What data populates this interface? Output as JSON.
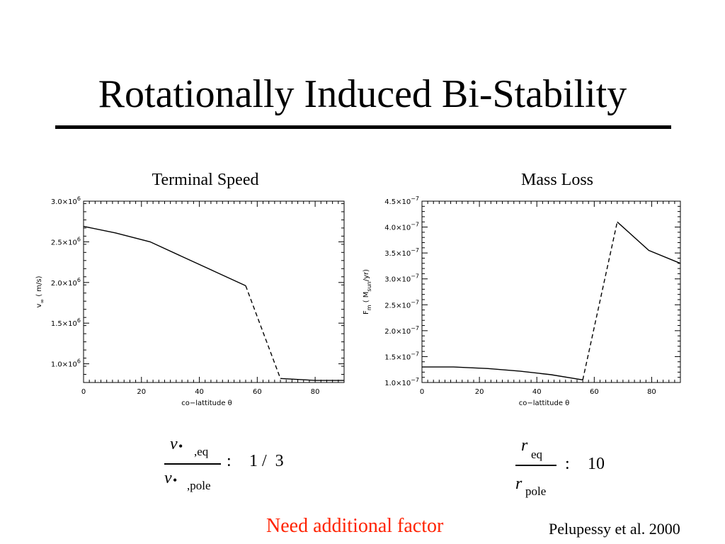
{
  "slide": {
    "title": "Rotationally Induced Bi-Stability",
    "note": "Need additional factor",
    "note_color": "#ff2200",
    "citation": "Pelupessy et al. 2000"
  },
  "chart_data": [
    {
      "type": "line",
      "title": "Terminal Speed",
      "xlabel": "co−lattitude  θ",
      "ylabel_main": "v",
      "ylabel_sub": "∞",
      "ylabel_units": "( m/s)",
      "xlim": [
        0,
        90
      ],
      "ylim": [
        770000,
        3000000
      ],
      "x_ticks": [
        0,
        20,
        40,
        60,
        80
      ],
      "x_tick_labels": [
        "0",
        "20",
        "40",
        "60",
        "80"
      ],
      "y_ticks": [
        {
          "value": 1000000,
          "mant": "1.0×10",
          "exp": "6"
        },
        {
          "value": 1500000,
          "mant": "1.5×10",
          "exp": "6"
        },
        {
          "value": 2000000,
          "mant": "2.0×10",
          "exp": "6"
        },
        {
          "value": 2500000,
          "mant": "2.5×10",
          "exp": "6"
        },
        {
          "value": 3000000,
          "mant": "3.0×10",
          "exp": "6"
        }
      ],
      "grid": false,
      "series": [
        {
          "style": "solid",
          "x": [
            0,
            11,
            23,
            34,
            45,
            56
          ],
          "y": [
            2690000,
            2610000,
            2500000,
            2320000,
            2140000,
            1960000
          ]
        },
        {
          "style": "dashed",
          "x": [
            56,
            68
          ],
          "y": [
            1960000,
            820000
          ]
        },
        {
          "style": "solid",
          "x": [
            68,
            80,
            90
          ],
          "y": [
            820000,
            795000,
            795000
          ]
        }
      ]
    },
    {
      "type": "line",
      "title": "Mass Loss",
      "xlabel": "co−lattitude  θ",
      "ylabel_main": "F",
      "ylabel_sub": "m",
      "ylabel_units_pre": "( M",
      "ylabel_units_sub": "sun",
      "ylabel_units_post": "/yr)",
      "xlim": [
        0,
        90
      ],
      "ylim": [
        1e-07,
        4.5e-07
      ],
      "x_ticks": [
        0,
        20,
        40,
        60,
        80
      ],
      "x_tick_labels": [
        "0",
        "20",
        "40",
        "60",
        "80"
      ],
      "y_ticks": [
        {
          "value": 1e-07,
          "mant": "1.0×10",
          "exp": "−7"
        },
        {
          "value": 1.5e-07,
          "mant": "1.5×10",
          "exp": "−7"
        },
        {
          "value": 2e-07,
          "mant": "2.0×10",
          "exp": "−7"
        },
        {
          "value": 2.5e-07,
          "mant": "2.5×10",
          "exp": "−7"
        },
        {
          "value": 3e-07,
          "mant": "3.0×10",
          "exp": "−7"
        },
        {
          "value": 3.5e-07,
          "mant": "3.5×10",
          "exp": "−7"
        },
        {
          "value": 4e-07,
          "mant": "4.0×10",
          "exp": "−7"
        },
        {
          "value": 4.5e-07,
          "mant": "4.5×10",
          "exp": "−7"
        }
      ],
      "grid": false,
      "series": [
        {
          "style": "solid",
          "x": [
            0,
            11,
            23,
            34,
            45,
            56
          ],
          "y": [
            1.3e-07,
            1.3e-07,
            1.27e-07,
            1.22e-07,
            1.15e-07,
            1.05e-07
          ]
        },
        {
          "style": "dashed",
          "x": [
            56,
            68
          ],
          "y": [
            1.05e-07,
            4.1e-07
          ]
        },
        {
          "style": "solid",
          "x": [
            68,
            79,
            90
          ],
          "y": [
            4.1e-07,
            3.55e-07,
            3.3e-07
          ]
        }
      ]
    }
  ],
  "ratios": {
    "speed": {
      "numerator_var": "v",
      "numerator_dot": "•",
      "numerator_sub": ",eq",
      "denominator_var": "v",
      "denominator_dot": "•",
      "denominator_sub": ",pole",
      "relation": ":",
      "value": "1 /  3"
    },
    "radius": {
      "numerator_var": "r",
      "numerator_sub": "eq",
      "denominator_var": "r",
      "denominator_sub": "pole",
      "relation": ":",
      "value": "10"
    }
  }
}
